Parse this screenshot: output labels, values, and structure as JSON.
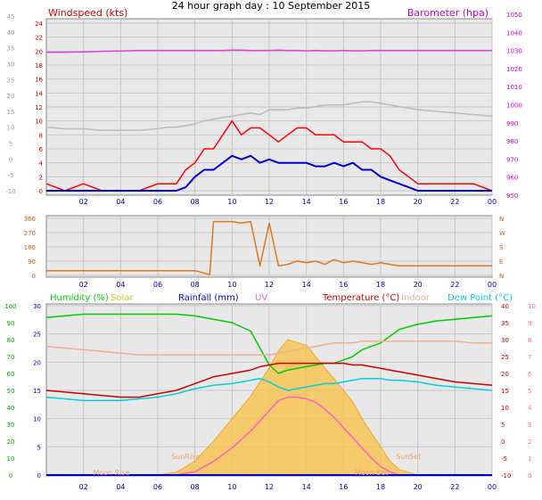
{
  "chart_data": [
    {
      "type": "line",
      "title": "24 hour graph day : 10 September 2015",
      "left_axis_label": "Windspeed (kts)",
      "right_axis_label": "Barometer (hpa)",
      "outer_axis_ticks": [
        "-10",
        "-5",
        "0",
        "5",
        "10",
        "15",
        "20",
        "25",
        "30",
        "35",
        "40",
        "45"
      ],
      "left_axis_ticks": [
        "0",
        "2",
        "4",
        "6",
        "8",
        "10",
        "12",
        "14",
        "16",
        "18",
        "20",
        "22",
        "24"
      ],
      "right_axis_ticks": [
        "950",
        "960",
        "970",
        "980",
        "990",
        "1000",
        "1010",
        "1020",
        "1030",
        "1040",
        "1050"
      ],
      "x_ticks": [
        "02",
        "04",
        "06",
        "08",
        "10",
        "12",
        "14",
        "16",
        "18",
        "20",
        "22",
        "00"
      ],
      "hours": [
        0,
        1,
        2,
        3,
        4,
        5,
        6,
        6.5,
        7,
        7.5,
        8,
        8.5,
        9,
        9.5,
        10,
        10.5,
        11,
        11.5,
        12,
        12.5,
        13,
        13.5,
        14,
        14.5,
        15,
        15.5,
        16,
        16.5,
        17,
        17.5,
        18,
        18.5,
        19,
        19.5,
        20,
        21,
        22,
        23,
        24
      ],
      "series": [
        {
          "name": "Barometer",
          "color": "#e040e0",
          "axis": "barometer",
          "values": [
            1029,
            1029,
            1029.2,
            1029.5,
            1029.7,
            1030,
            1030,
            1030,
            1030,
            1030,
            1030,
            1030,
            1030,
            1030,
            1030.2,
            1030.2,
            1030,
            1030,
            1030,
            1030.2,
            1030,
            1030,
            1029.8,
            1030,
            1029.8,
            1029.8,
            1030,
            1029.8,
            1029.8,
            1030,
            1030,
            1030,
            1030,
            1030,
            1030,
            1030,
            1030,
            1030,
            1030
          ]
        },
        {
          "name": "Gust",
          "color": "#ff0000",
          "axis": "wind",
          "values": [
            1,
            0,
            1,
            0,
            0,
            0,
            1,
            1,
            1,
            3,
            4,
            6,
            6,
            8,
            10,
            8,
            9,
            9,
            8,
            7,
            8,
            9,
            9,
            8,
            8,
            8,
            7,
            7,
            7,
            6,
            6,
            5,
            3,
            2,
            1,
            1,
            1,
            1,
            0
          ]
        },
        {
          "name": "Average wind",
          "color": "#0000cc",
          "axis": "wind",
          "values": [
            0,
            0,
            0,
            0,
            0,
            0,
            0,
            0,
            0,
            0.5,
            2,
            3,
            3,
            4,
            5,
            4.5,
            5,
            4,
            4.5,
            4,
            4,
            4,
            4,
            3.5,
            3.5,
            4,
            3.5,
            4,
            3,
            3,
            2,
            1.5,
            1,
            0.5,
            0,
            0,
            0,
            0,
            0
          ]
        },
        {
          "name": "Outer series",
          "color": "#bbbbbb",
          "axis": "outer",
          "values": [
            10,
            9.5,
            9.5,
            9,
            9,
            9,
            9.5,
            10,
            10,
            10.5,
            11,
            12,
            12.5,
            13,
            13.5,
            14,
            14.5,
            14,
            15.5,
            15.5,
            15.5,
            16,
            16,
            16.5,
            17,
            17,
            17,
            17.5,
            18,
            18,
            17.5,
            17,
            16.5,
            16,
            15.5,
            15,
            14.5,
            14,
            13.5
          ]
        }
      ]
    },
    {
      "type": "line",
      "title": "",
      "left_axis_ticks": [
        "0",
        "90",
        "180",
        "270",
        "360"
      ],
      "right_axis_ticks": [
        "N",
        "E",
        "S",
        "W",
        "N"
      ],
      "x_ticks": [
        "02",
        "04",
        "06",
        "08",
        "10",
        "12",
        "14",
        "16",
        "18",
        "20",
        "22",
        "00"
      ],
      "series": [
        {
          "name": "Wind direction",
          "color": "#e07820",
          "hours": [
            0,
            2,
            4,
            6,
            8,
            8.8,
            9,
            9.3,
            9.6,
            10,
            10.5,
            11,
            11.5,
            12,
            12.5,
            13,
            13.5,
            14,
            14.5,
            15,
            15.5,
            16,
            16.5,
            17,
            17.5,
            18,
            18.5,
            19,
            20,
            22,
            24
          ],
          "values": [
            30,
            30,
            30,
            30,
            30,
            5,
            340,
            340,
            340,
            340,
            330,
            340,
            60,
            330,
            60,
            70,
            90,
            80,
            90,
            70,
            100,
            80,
            90,
            80,
            70,
            80,
            70,
            60,
            60,
            60,
            60
          ]
        }
      ]
    },
    {
      "type": "line",
      "title": "",
      "legend": [
        "Humidity (%)",
        "Solar",
        "Rainfall (mm)",
        "UV",
        "Temperature (°C)",
        "Indoor",
        "Dew Point (°C)"
      ],
      "legend_colors": [
        "#00cc00",
        "#c8c820",
        "#0000cc",
        "#ff60c0",
        "#cc0000",
        "#f0b090",
        "#00d0e0"
      ],
      "left_outer_ticks": [
        "0",
        "10",
        "20",
        "30",
        "40",
        "50",
        "60",
        "70",
        "80",
        "90",
        "100"
      ],
      "left_inner_ticks": [
        "0",
        "5",
        "10",
        "15",
        "20",
        "25",
        "30"
      ],
      "right_inner_ticks": [
        "-10",
        "-5",
        "0",
        "5",
        "10",
        "15",
        "20",
        "25",
        "30",
        "35",
        "40"
      ],
      "right_outer_ticks": [
        "0",
        "1",
        "2",
        "3",
        "4",
        "5",
        "6",
        "7",
        "8",
        "9",
        "10"
      ],
      "x_ticks": [
        "02",
        "04",
        "06",
        "08",
        "10",
        "12",
        "14",
        "16",
        "18",
        "20",
        "22",
        "00"
      ],
      "annotations": [
        "Moon Rise",
        "SunRise",
        "SunSet",
        "Moon Set"
      ],
      "annotation_hours": [
        3.5,
        7.5,
        19.5,
        17.5
      ],
      "hours": [
        0,
        1,
        2,
        3,
        4,
        5,
        6,
        7,
        8,
        9,
        10,
        11,
        11.5,
        12,
        12.5,
        13,
        13.5,
        14,
        14.5,
        15,
        15.5,
        16,
        16.5,
        17,
        17.5,
        18,
        18.5,
        19,
        20,
        21,
        22,
        23,
        24
      ],
      "series": [
        {
          "name": "Humidity",
          "color": "#00cc00",
          "axis": "humidity",
          "values": [
            93,
            94,
            95,
            95,
            95,
            95,
            95,
            95,
            94,
            92,
            90,
            85,
            75,
            65,
            60,
            62,
            63,
            64,
            65,
            66,
            66,
            68,
            70,
            74,
            76,
            78,
            82,
            86,
            89,
            91,
            92,
            93,
            94
          ]
        },
        {
          "name": "Temperature",
          "color": "#cc0000",
          "axis": "temp",
          "values": [
            15,
            14.5,
            14,
            13.5,
            13,
            13,
            14,
            15,
            17,
            19,
            20,
            21,
            22,
            22.5,
            23,
            23,
            23,
            23,
            23,
            23,
            23,
            23,
            22.5,
            22.5,
            22,
            21.5,
            21,
            20.5,
            19.5,
            18.5,
            17.5,
            17,
            16.5
          ]
        },
        {
          "name": "Dew Point",
          "color": "#00d0e0",
          "axis": "temp",
          "values": [
            13,
            12.5,
            12,
            12,
            12,
            12.5,
            13,
            14,
            15.5,
            16.5,
            17,
            18,
            18.5,
            17.5,
            16,
            15,
            15.5,
            16,
            16.5,
            17,
            17,
            17.5,
            18,
            18.5,
            18.5,
            18.5,
            18,
            18,
            17.5,
            16.5,
            16,
            15.5,
            15
          ]
        },
        {
          "name": "Indoor",
          "color": "#f0b090",
          "axis": "temp",
          "values": [
            28,
            27.5,
            27,
            26.5,
            26,
            25.5,
            25.5,
            25.5,
            25.5,
            25.5,
            25.5,
            25.5,
            25.5,
            25.5,
            26,
            26.5,
            27,
            27.5,
            28,
            28.5,
            29,
            29,
            29,
            29.5,
            29.5,
            29.5,
            29.5,
            29.5,
            29.5,
            29.5,
            29.5,
            29,
            29
          ]
        },
        {
          "name": "UV",
          "color": "#ff60c0",
          "axis": "uv",
          "values": [
            0,
            0,
            0,
            0,
            0,
            0,
            0,
            0,
            0.2,
            0.8,
            1.6,
            2.6,
            3.2,
            3.8,
            4.4,
            4.6,
            4.6,
            4.5,
            4.3,
            3.9,
            3.4,
            2.8,
            2.2,
            1.6,
            1.0,
            0.5,
            0.2,
            0,
            0,
            0,
            0,
            0,
            0
          ]
        },
        {
          "name": "Solar",
          "color": "#f8c040",
          "axis": "solar",
          "values": [
            0,
            0,
            0,
            0,
            0,
            0,
            0,
            1,
            5,
            12,
            20,
            28,
            33,
            38,
            44,
            48,
            47,
            46,
            42,
            38,
            34,
            30,
            26,
            20,
            15,
            10,
            5,
            2,
            0,
            0,
            0,
            0,
            0
          ]
        },
        {
          "name": "Rainfall",
          "color": "#0000cc",
          "axis": "rain",
          "values": [
            0,
            0,
            0,
            0,
            0,
            0,
            0,
            0,
            0,
            0,
            0,
            0,
            0,
            0,
            0,
            0,
            0,
            0,
            0,
            0,
            0,
            0,
            0,
            0,
            0,
            0,
            0,
            0,
            0,
            0,
            0,
            0,
            0
          ]
        }
      ]
    }
  ]
}
